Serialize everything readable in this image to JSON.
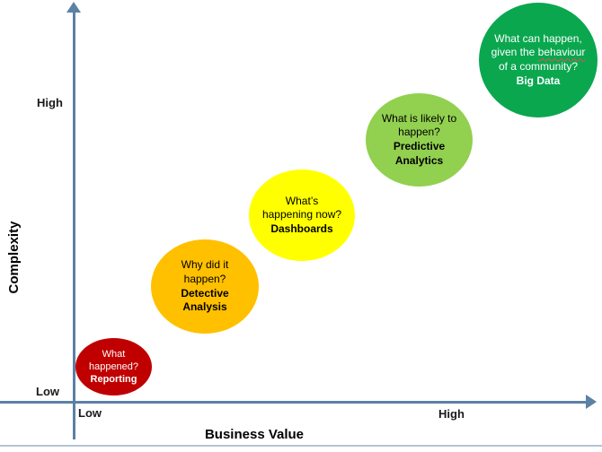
{
  "axes": {
    "x": {
      "label": "Business Value",
      "low": "Low",
      "high": "High"
    },
    "y": {
      "label": "Complexity",
      "low": "Low",
      "high": "High"
    }
  },
  "bubbles": [
    {
      "question": "What happened?",
      "label": "Reporting",
      "color": "#C00000",
      "text_color": "#FFFFFF"
    },
    {
      "question": "Why did it happen?",
      "label": "Detective Analysis",
      "color": "#FFC000",
      "text_color": "#000000"
    },
    {
      "question": "What’s happening now?",
      "label": "Dashboards",
      "color": "#FFFF00",
      "text_color": "#000000"
    },
    {
      "question": "What is likely to happen?",
      "label": "Predictive Analytics",
      "color": "#92D050",
      "text_color": "#000000"
    },
    {
      "question_part1": "What can happen, given the",
      "misspelled_word": "behaviour",
      "question_part2": "of a community?",
      "label": "Big Data",
      "color": "#0AA74F",
      "text_color": "#FFFFFF"
    }
  ],
  "colors": {
    "axis": "#5B81A5",
    "bottom_border": "#B4C2D6"
  },
  "chart_data": {
    "type": "bubble",
    "title": "",
    "xlabel": "Business Value",
    "ylabel": "Complexity",
    "x_ticks": [
      "Low",
      "High"
    ],
    "y_ticks": [
      "Low",
      "High"
    ],
    "grid": false,
    "legend": false,
    "points": [
      {
        "label": "Reporting",
        "question": "What happened?",
        "x": 0.08,
        "y": 0.08,
        "size": 1.0,
        "color": "#C00000"
      },
      {
        "label": "Detective Analysis",
        "question": "Why did it happen?",
        "x": 0.25,
        "y": 0.28,
        "size": 1.8,
        "color": "#FFC000"
      },
      {
        "label": "Dashboards",
        "question": "What’s happening now?",
        "x": 0.43,
        "y": 0.47,
        "size": 1.8,
        "color": "#FFFF00"
      },
      {
        "label": "Predictive Analytics",
        "question": "What is likely to happen?",
        "x": 0.65,
        "y": 0.66,
        "size": 1.8,
        "color": "#92D050"
      },
      {
        "label": "Big Data",
        "question": "What can happen, given the behaviour of a community?",
        "x": 0.88,
        "y": 0.9,
        "size": 2.1,
        "color": "#0AA74F"
      }
    ]
  }
}
